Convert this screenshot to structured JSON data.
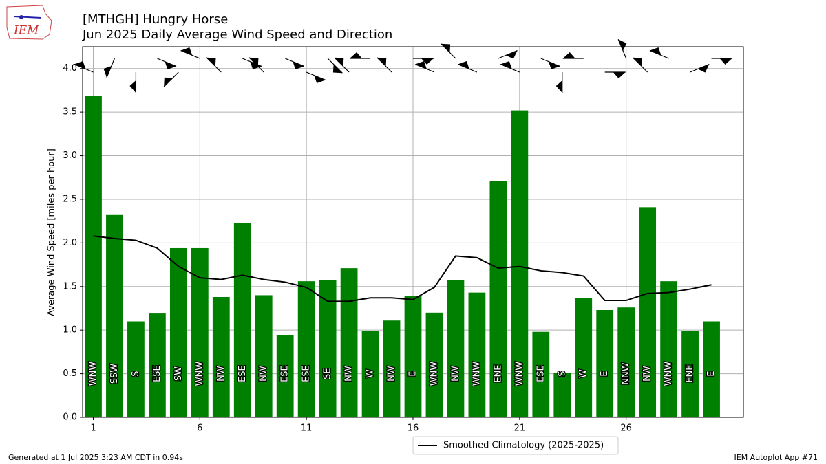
{
  "chart_data": {
    "type": "bar",
    "title": "[MTHGH] Hungry Horse",
    "subtitle": "Jun 2025 Daily Average Wind Speed and Direction",
    "y_label": "Average Wind Speed [miles per hour]",
    "x": [
      1,
      2,
      3,
      4,
      5,
      6,
      7,
      8,
      9,
      10,
      11,
      12,
      13,
      14,
      15,
      16,
      17,
      18,
      19,
      20,
      21,
      22,
      23,
      24,
      25,
      26,
      27,
      28,
      29,
      30
    ],
    "directions": [
      "WNW",
      "SSW",
      "S",
      "ESE",
      "SW",
      "WNW",
      "NW",
      "ESE",
      "NW",
      "ESE",
      "ESE",
      "SE",
      "NW",
      "W",
      "NW",
      "E",
      "WNW",
      "NW",
      "WNW",
      "ENE",
      "WNW",
      "ESE",
      "S",
      "W",
      "E",
      "NNW",
      "NW",
      "WNW",
      "ENE",
      "E"
    ],
    "series": [
      {
        "type": "bar",
        "color": "#008000",
        "values": [
          3.69,
          2.32,
          1.1,
          1.19,
          1.94,
          1.94,
          1.38,
          2.23,
          1.4,
          0.94,
          1.56,
          1.57,
          1.71,
          0.99,
          1.11,
          1.39,
          1.2,
          1.57,
          1.43,
          2.71,
          3.52,
          0.98,
          0.51,
          1.37,
          1.23,
          1.26,
          2.41,
          1.56,
          0.99,
          1.1
        ]
      },
      {
        "type": "line",
        "name": "Smoothed Climatology (2025-2025)",
        "color": "#000000",
        "values": [
          2.08,
          2.05,
          2.03,
          1.94,
          1.73,
          1.6,
          1.58,
          1.63,
          1.58,
          1.55,
          1.49,
          1.33,
          1.33,
          1.37,
          1.37,
          1.35,
          1.49,
          1.85,
          1.83,
          1.71,
          1.73,
          1.68,
          1.66,
          1.62,
          1.34,
          1.34,
          1.42,
          1.43,
          1.47,
          1.52
        ]
      }
    ],
    "xlim": [
      0.5,
      31.5
    ],
    "xticks": [
      1,
      6,
      11,
      16,
      21,
      26
    ],
    "ylim": [
      0,
      4.25
    ],
    "yticks": [
      {
        "value": 0,
        "label": "0.0"
      },
      {
        "value": 0.5,
        "label": "0.5"
      },
      {
        "value": 1,
        "label": "1.0"
      },
      {
        "value": 1.5,
        "label": "1.5"
      },
      {
        "value": 2,
        "label": "2.0"
      },
      {
        "value": 2.5,
        "label": "2.5"
      },
      {
        "value": 3,
        "label": "3.0"
      },
      {
        "value": 3.5,
        "label": "3.5"
      },
      {
        "value": 4,
        "label": "4.0"
      }
    ],
    "grid": true,
    "legend": "bottom"
  },
  "footer": {
    "left": "Generated at 1 Jul 2025 3:23 AM CDT in 0.94s",
    "right": "IEM Autoplot App #71",
    "logo": "IEM"
  }
}
